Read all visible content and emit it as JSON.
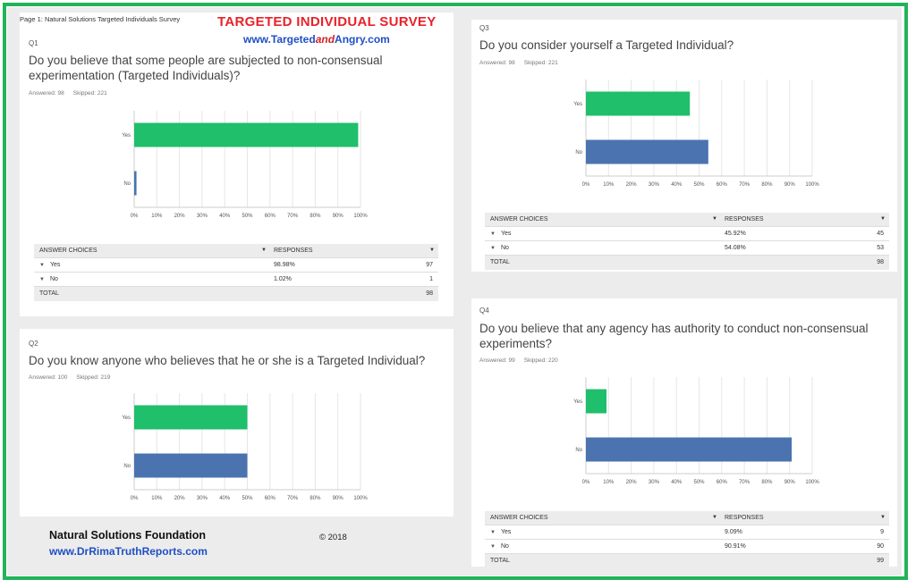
{
  "page_label": "Page 1: Natural Solutions Targeted Individuals Survey",
  "banner": {
    "title": "TARGETED INDIVIDUAL SURVEY",
    "site_prefix": "www.Targeted",
    "site_middle": "and",
    "site_suffix": "Angry.com"
  },
  "footer": {
    "org": "Natural Solutions Foundation",
    "site": "www.DrRimaTruthReports.com",
    "copyright": "© 2018"
  },
  "colors": {
    "green": "#1fbf6b",
    "blue": "#4a73b0",
    "border": "#21b35a"
  },
  "table_headers": {
    "choices": "ANSWER CHOICES",
    "responses": "RESPONSES",
    "total": "TOTAL"
  },
  "chart_data": [
    {
      "type": "bar",
      "id": "Q1",
      "title": "Do you believe that some people are subjected to non-consensual experimentation (Targeted Individuals)?",
      "answered": "Answered: 98",
      "skipped": "Skipped: 221",
      "categories": [
        "Yes",
        "No"
      ],
      "values": [
        98.98,
        1.02
      ],
      "value_labels": [
        "98.98%",
        "1.02%"
      ],
      "counts": [
        "97",
        "1"
      ],
      "total": "98",
      "colors": [
        "#1fbf6b",
        "#4a73b0"
      ],
      "xlim": [
        0,
        100
      ],
      "ticks": [
        "0%",
        "10%",
        "20%",
        "30%",
        "40%",
        "50%",
        "60%",
        "70%",
        "80%",
        "90%",
        "100%"
      ]
    },
    {
      "type": "bar",
      "id": "Q2",
      "title": "Do you know anyone who believes that he or she is a Targeted Individual?",
      "answered": "Answered: 100",
      "skipped": "Skipped: 219",
      "categories": [
        "Yes",
        "No"
      ],
      "values": [
        50,
        50
      ],
      "colors": [
        "#1fbf6b",
        "#4a73b0"
      ],
      "xlim": [
        0,
        100
      ],
      "ticks": [
        "0%",
        "10%",
        "20%",
        "30%",
        "40%",
        "50%",
        "60%",
        "70%",
        "80%",
        "90%",
        "100%"
      ]
    },
    {
      "type": "bar",
      "id": "Q3",
      "title": "Do you consider yourself a Targeted Individual?",
      "answered": "Answered: 98",
      "skipped": "Skipped: 221",
      "categories": [
        "Yes",
        "No"
      ],
      "values": [
        45.92,
        54.08
      ],
      "value_labels": [
        "45.92%",
        "54.08%"
      ],
      "counts": [
        "45",
        "53"
      ],
      "total": "98",
      "colors": [
        "#1fbf6b",
        "#4a73b0"
      ],
      "xlim": [
        0,
        100
      ],
      "ticks": [
        "0%",
        "10%",
        "20%",
        "30%",
        "40%",
        "50%",
        "60%",
        "70%",
        "80%",
        "90%",
        "100%"
      ]
    },
    {
      "type": "bar",
      "id": "Q4",
      "title": "Do you believe that any agency has authority to conduct non-consensual experiments?",
      "answered": "Answered: 99",
      "skipped": "Skipped: 220",
      "categories": [
        "Yes",
        "No"
      ],
      "values": [
        9.09,
        90.91
      ],
      "value_labels": [
        "9.09%",
        "90.91%"
      ],
      "counts": [
        "9",
        "90"
      ],
      "total": "99",
      "colors": [
        "#1fbf6b",
        "#4a73b0"
      ],
      "xlim": [
        0,
        100
      ],
      "ticks": [
        "0%",
        "10%",
        "20%",
        "30%",
        "40%",
        "50%",
        "60%",
        "70%",
        "80%",
        "90%",
        "100%"
      ]
    }
  ]
}
